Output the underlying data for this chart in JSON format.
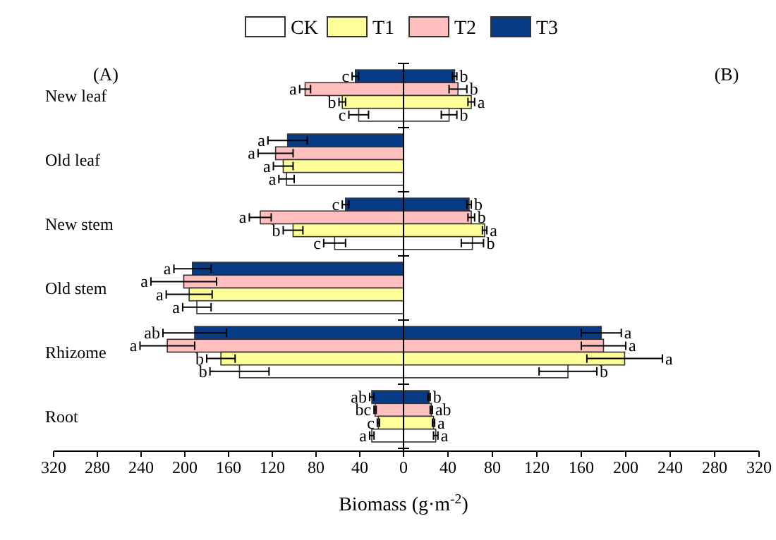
{
  "chart_data": [
    {
      "type": "bar",
      "orientation": "horizontal",
      "title": "(A)",
      "xlabel": "Biomass (g·m$^{-2}$)",
      "legend": "top",
      "categories": [
        "New leaf",
        "Old leaf",
        "New stem",
        "Old stem",
        "Rhizome",
        "Root"
      ],
      "xlim": [
        320,
        0
      ],
      "xticks": [
        320,
        280,
        240,
        200,
        160,
        120,
        80,
        40,
        0
      ],
      "series": [
        {
          "name": "T3",
          "color": "#083b86",
          "values": [
            44,
            106,
            53,
            193,
            191,
            29
          ],
          "errors": [
            3,
            18,
            3,
            17,
            29,
            2
          ],
          "value_labels": [
            "c",
            "a",
            "c",
            "a",
            "ab",
            "ab"
          ]
        },
        {
          "name": "T2",
          "color": "#ffbfbf",
          "values": [
            90,
            117,
            131,
            201,
            216,
            26
          ],
          "errors": [
            5,
            16,
            10,
            30,
            25,
            1
          ],
          "value_labels": [
            "a",
            "a",
            "a",
            "a",
            "a",
            "bc"
          ]
        },
        {
          "name": "T1",
          "color": "#ffff99",
          "values": [
            56,
            110,
            101,
            196,
            167,
            23
          ],
          "errors": [
            3,
            9,
            9,
            21,
            13,
            1
          ],
          "value_labels": [
            "b",
            "a",
            "b",
            "a",
            "b",
            "c"
          ]
        },
        {
          "name": "CK",
          "color": "#ffffff",
          "values": [
            41,
            107,
            63,
            189,
            150,
            29
          ],
          "errors": [
            9,
            7,
            10,
            13,
            27,
            2
          ],
          "value_labels": [
            "c",
            "a",
            "c",
            "a",
            "b",
            "a"
          ]
        }
      ]
    },
    {
      "type": "bar",
      "orientation": "horizontal",
      "title": "(B)",
      "tick_labels": "x",
      "categories": [
        null,
        null,
        null,
        null,
        null,
        null
      ],
      "xlim": [
        0,
        320
      ],
      "xticks": [
        40,
        80,
        120,
        160,
        200,
        240,
        280,
        320
      ],
      "series": [
        {
          "color": "#083b86",
          "values": [
            46,
            null,
            59,
            null,
            178,
            23
          ],
          "errors": [
            2,
            null,
            2,
            null,
            18,
            1
          ],
          "value_labels": [
            "b",
            null,
            "b",
            null,
            "a",
            "b"
          ]
        },
        {
          "color": "#ffbfbf",
          "values": [
            49,
            null,
            61,
            null,
            180,
            25
          ],
          "errors": [
            8,
            null,
            3,
            null,
            20,
            1
          ],
          "value_labels": [
            "b",
            null,
            "b",
            null,
            "a",
            "ab"
          ]
        },
        {
          "color": "#ffff99",
          "values": [
            61,
            null,
            73,
            null,
            199,
            27
          ],
          "errors": [
            3,
            null,
            2,
            null,
            34,
            1
          ],
          "value_labels": [
            "a",
            null,
            "a",
            null,
            "a",
            "a"
          ]
        },
        {
          "color": "#ffffff",
          "values": [
            41,
            null,
            62,
            null,
            148,
            29
          ],
          "errors": [
            7,
            null,
            10,
            null,
            26,
            2
          ],
          "value_labels": [
            "b",
            null,
            "b",
            null,
            "b",
            "a"
          ]
        }
      ]
    }
  ]
}
